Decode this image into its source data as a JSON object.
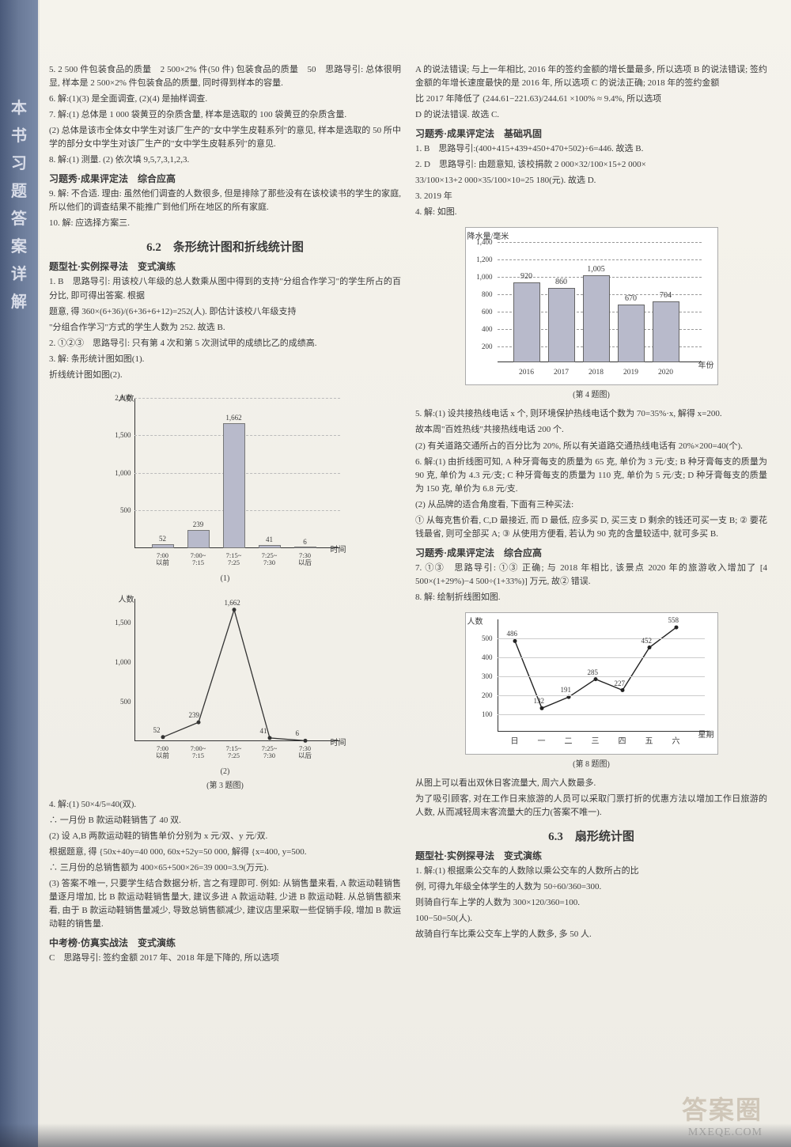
{
  "spine": [
    "本",
    "书",
    "习",
    "题",
    "答",
    "案",
    "详",
    "解"
  ],
  "left": {
    "p5": "5. 2 500 件包装食品的质量　2 500×2% 件(50 件) 包装食品的质量　50　思路导引: 总体很明显, 样本是 2 500×2% 件包装食品的质量, 同时得到样本的容量.",
    "p6": "6. 解:(1)(3) 是全面调查, (2)(4) 是抽样调查.",
    "p7": "7. 解:(1) 总体是 1 000 袋黄豆的杂质含量, 样本是选取的 100 袋黄豆的杂质含量.",
    "p7b": "(2) 总体是该市全体女中学生对该厂生产的\"女中学生皮鞋系列\"的意见, 样本是选取的 50 所中学的部分女中学生对该厂生产的\"女中学生皮鞋系列\"的意见.",
    "p8": "8. 解:(1) 测量. (2) 依次填 9,5,7,3,1,2,3.",
    "hxt1": "习题秀·成果评定法　综合应高",
    "p9": "9. 解: 不合适. 理由: 虽然他们调查的人数很多, 但是排除了那些没有在该校读书的学生的家庭, 所以他们的调查结果不能推广到他们所在地区的所有家庭.",
    "p10": "10. 解: 应选择方案三.",
    "sec62": "6.2　条形统计图和折线统计图",
    "txs1": "题型社·实例探寻法　变式演练",
    "p1b": "1. B　思路导引: 用该校八年级的总人数乘从图中得到的支持\"分组合作学习\"的学生所占的百分比, 即可得出答案. 根据",
    "p1f": "题意, 得 360×(6+36)/(6+36+6+12)=252(人). 即估计该校八年级支持",
    "p1g": "\"分组合作学习\"方式的学生人数为 252. 故选 B.",
    "p2b": "2. ①②③　思路导引: 只有第 4 次和第 5 次测试甲的成绩比乙的成绩高.",
    "p3": "3. 解: 条形统计图如图(1).",
    "p3b": "折线统计图如图(2).",
    "chart1": {
      "ylabel": "人数",
      "xlabel": "时间",
      "yticks": [
        500,
        1000,
        1500,
        2000
      ],
      "bars": [
        {
          "label": "7:00\n以前",
          "val": 52,
          "x": 62
        },
        {
          "label": "7:00~\n7:15",
          "val": 239,
          "x": 107
        },
        {
          "label": "7:15~\n7:25",
          "val": 1662,
          "x": 152
        },
        {
          "label": "7:25~\n7:30",
          "val": 41,
          "x": 197
        },
        {
          "label": "7:30\n以后",
          "val": 6,
          "x": 242
        }
      ],
      "cap": "(1)"
    },
    "chart2": {
      "ylabel": "人数",
      "xlabel": "时间",
      "yticks": [
        500,
        1000,
        1500
      ],
      "pts": [
        {
          "label": "7:00\n以前",
          "val": 52,
          "x": 62
        },
        {
          "label": "7:00~\n7:15",
          "val": 239,
          "x": 107
        },
        {
          "label": "7:15~\n7:25",
          "val": 1662,
          "x": 152
        },
        {
          "label": "7:25~\n7:30",
          "val": 41,
          "x": 197
        },
        {
          "label": "7:30\n以后",
          "val": 6,
          "x": 242
        }
      ],
      "cap": "(2)",
      "figcap": "(第 3 题图)"
    },
    "p4": "4. 解:(1) 50×4/5=40(双).",
    "p4b": "∴ 一月份 B 款运动鞋销售了 40 双.",
    "p4c": "(2) 设 A,B 两款运动鞋的销售单价分别为 x 元/双、y 元/双.",
    "p4d": "根据题意, 得 {50x+40y=40 000, 60x+52y=50 000, 解得 {x=400, y=500.",
    "p4e": "∴ 三月份的总销售额为 400×65+500×26=39 000=3.9(万元).",
    "p4f": "(3) 答案不唯一, 只要学生结合数据分析, 言之有理即可. 例如: 从销售量来看, A 款运动鞋销售量逐月增加, 比 B 款运动鞋销售量大, 建议多进 A 款运动鞋, 少进 B 款运动鞋. 从总销售额来看, 由于 B 款运动鞋销售量减少, 导致总销售额减少, 建议店里采取一些促销手段, 增加 B 款运动鞋的销售量.",
    "zkb": "中考榜·仿真实战法　变式演练",
    "pC": "C　思路导引: 签约金额 2017 年、2018 年是下降的, 所以选项"
  },
  "right": {
    "pCont": "A 的说法错误; 与上一年相比, 2016 年的签约金额的增长量最多, 所以选项 B 的说法错误; 签约金额的年增长速度最快的是 2016 年, 所以选项 C 的说法正确; 2018 年的签约金额",
    "pCont2": "比 2017 年降低了 (244.61−221.63)/244.61 ×100% ≈ 9.4%, 所以选项",
    "pCont3": "D 的说法错误. 故选 C.",
    "hxt2": "习题秀·成果评定法　基础巩固",
    "r1": "1. B　思路导引:(400+415+439+450+470+502)÷6=446. 故选 B.",
    "r2": "2. D　思路导引: 由题意知, 该校捐款 2 000×32/100×15+2 000×",
    "r2b": "33/100×13+2 000×35/100×10=25 180(元). 故选 D.",
    "r3": "3. 2019 年",
    "r4": "4. 解: 如图.",
    "chartR1": {
      "ylabel": "降水量/毫米",
      "xlabel": "年份",
      "yticks": [
        200,
        400,
        600,
        800,
        1000,
        1200,
        1400
      ],
      "bars": [
        {
          "label": "2016",
          "val": 920,
          "x": 60
        },
        {
          "label": "2017",
          "val": 860,
          "x": 104
        },
        {
          "label": "2018",
          "val": 1005,
          "x": 148
        },
        {
          "label": "2019",
          "val": 670,
          "x": 192
        },
        {
          "label": "2020",
          "val": 704,
          "x": 236
        }
      ],
      "figcap": "(第 4 题图)"
    },
    "r5": "5. 解:(1) 设共接热线电话 x 个, 则环境保护热线电话个数为 70=35%·x, 解得 x=200.",
    "r5b": "故本周\"百姓热线\"共接热线电话 200 个.",
    "r5c": "(2) 有关道路交通所占的百分比为 20%, 所以有关道路交通热线电话有 20%×200=40(个).",
    "r6": "6. 解:(1) 由折线图可知, A 种牙膏每支的质量为 65 克, 单价为 3 元/支; B 种牙膏每支的质量为 90 克, 单价为 4.3 元/支; C 种牙膏每支的质量为 110 克, 单价为 5 元/支; D 种牙膏每支的质量为 150 克, 单价为 6.8 元/支.",
    "r6b": "(2) 从品牌的适合角度看, 下面有三种买法:",
    "r6c": "① 从每克售价看, C,D 最接近, 而 D 最低, 应多买 D, 买三支 D 剩余的钱还可买一支 B; ② 要花钱最省, 则可全部买 A; ③ 从使用方便看, 若认为 90 克的含量较适中, 就可多买 B.",
    "hxt3": "习题秀·成果评定法　综合应高",
    "r7": "7. ①③　思路导引: ①③ 正确; 与 2018 年相比, 该景点 2020 年的旅游收入增加了 [4 500×(1+29%)−4 500÷(1+33%)] 万元, 故② 错误.",
    "r8": "8. 解: 绘制折线图如图.",
    "chartR2": {
      "ylabel": "人数",
      "xlabel": "星期",
      "yticks": [
        100,
        200,
        300,
        400,
        500
      ],
      "pts": [
        {
          "label": "日",
          "val": 486,
          "x": 62
        },
        {
          "label": "一",
          "val": 132,
          "x": 96
        },
        {
          "label": "二",
          "val": 191,
          "x": 130
        },
        {
          "label": "三",
          "val": 285,
          "x": 164
        },
        {
          "label": "四",
          "val": 227,
          "x": 198
        },
        {
          "label": "五",
          "val": 452,
          "x": 232
        },
        {
          "label": "六",
          "val": 558,
          "x": 266
        }
      ],
      "figcap": "(第 8 题图)"
    },
    "r8b": "从图上可以看出双休日客流量大, 周六人数最多.",
    "r8c": "为了吸引顾客, 对在工作日来旅游的人员可以采取门票打折的优惠方法以增加工作日旅游的人数, 从而减轻周末客流量大的压力(答案不唯一).",
    "sec63": "6.3　扇形统计图",
    "txs2": "题型社·实例探寻法　变式演练",
    "s1": "1. 解:(1) 根据乘公交车的人数除以乘公交车的人数所占的比",
    "s1b": "例, 可得九年级全体学生的人数为 50÷60/360=300.",
    "s1c": "则骑自行车上学的人数为 300×120/360=100.",
    "s1d": "100−50=50(人).",
    "s1e": "故骑自行车比乘公交车上学的人数多, 多 50 人."
  },
  "watermark": "答案圈",
  "watermark2": "MXEQE.COM"
}
